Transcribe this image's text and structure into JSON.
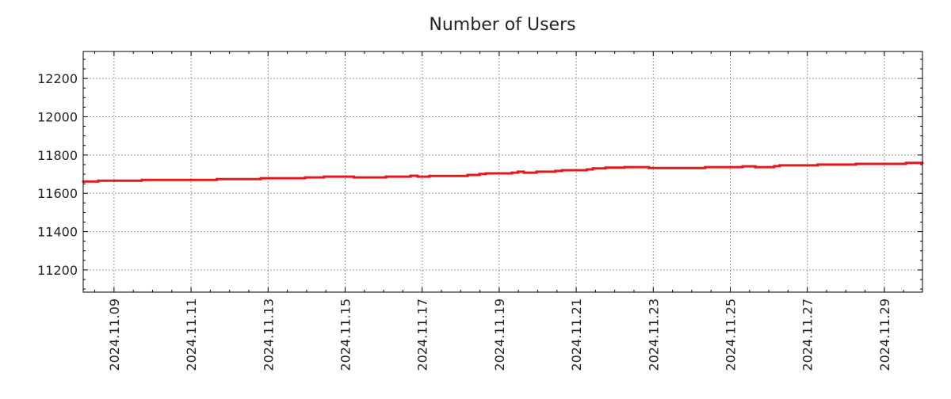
{
  "chart_data": {
    "type": "line",
    "title": "Number of Users",
    "xlabel": "",
    "ylabel": "",
    "x_unit": "day of November 2024",
    "xlim": [
      8.2,
      29.99
    ],
    "ylim": [
      11084,
      12341
    ],
    "grid": true,
    "legend": "none",
    "line_color": "#e31a1c",
    "step": true,
    "y_ticks": [
      11200,
      11400,
      11600,
      11800,
      12000,
      12200
    ],
    "x_ticks": [
      {
        "value": 9,
        "label": "2024.11.09"
      },
      {
        "value": 11,
        "label": "2024.11.11"
      },
      {
        "value": 13,
        "label": "2024.11.13"
      },
      {
        "value": 15,
        "label": "2024.11.15"
      },
      {
        "value": 17,
        "label": "2024.11.17"
      },
      {
        "value": 19,
        "label": "2024.11.19"
      },
      {
        "value": 21,
        "label": "2024.11.21"
      },
      {
        "value": 23,
        "label": "2024.11.23"
      },
      {
        "value": 25,
        "label": "2024.11.25"
      },
      {
        "value": 27,
        "label": "2024.11.27"
      },
      {
        "value": 29,
        "label": "2024.11.29"
      }
    ],
    "series": [
      {
        "name": "Number of Users",
        "x": [
          8.2,
          8.59,
          9.72,
          11.67,
          12.81,
          13.96,
          14.45,
          15.23,
          16.06,
          16.7,
          16.88,
          17.19,
          18.18,
          18.49,
          18.65,
          19.33,
          19.49,
          19.64,
          19.97,
          20.46,
          20.63,
          21.28,
          21.43,
          21.76,
          22.25,
          22.89,
          24.35,
          25.32,
          25.65,
          26.14,
          26.28,
          27.27,
          28.26,
          29.56,
          29.99
        ],
        "values": [
          11662,
          11666,
          11670,
          11674,
          11679,
          11683,
          11687,
          11683,
          11687,
          11692,
          11687,
          11691,
          11696,
          11701,
          11704,
          11708,
          11713,
          11708,
          11713,
          11717,
          11721,
          11725,
          11730,
          11734,
          11737,
          11732,
          11737,
          11741,
          11737,
          11742,
          11746,
          11750,
          11754,
          11759,
          11759
        ]
      }
    ]
  }
}
